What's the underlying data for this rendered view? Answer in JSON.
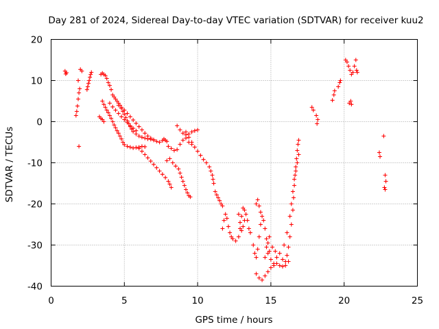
{
  "chart_data": {
    "type": "scatter",
    "title": "Day 281 of 2024, Sidereal Day-to-day VTEC variation (SDTVAR) for receiver kuu2",
    "xlabel": "GPS time / hours",
    "ylabel": "SDTVAR / TECUs",
    "xlim": [
      0,
      25
    ],
    "ylim": [
      -40,
      20
    ],
    "xticks": [
      "0",
      "5",
      "10",
      "15",
      "20",
      "25"
    ],
    "yticks": [
      "20",
      "10",
      "0",
      "-10",
      "-20",
      "-30",
      "-40"
    ],
    "grid": true,
    "marker": "+",
    "series": [
      {
        "name": "SDTVAR",
        "color": "#ff0000",
        "points": [
          [
            0.95,
            12.3
          ],
          [
            1.0,
            11.6
          ],
          [
            1.05,
            11.9
          ],
          [
            1.7,
            1.5
          ],
          [
            1.75,
            2.5
          ],
          [
            1.8,
            3.8
          ],
          [
            1.85,
            5.5
          ],
          [
            1.9,
            7.0
          ],
          [
            1.95,
            8.0
          ],
          [
            1.85,
            10.0
          ],
          [
            1.9,
            -6.0
          ],
          [
            2.0,
            12.7
          ],
          [
            2.1,
            12.3
          ],
          [
            2.45,
            7.8
          ],
          [
            2.5,
            8.5
          ],
          [
            2.55,
            9.3
          ],
          [
            2.6,
            10.0
          ],
          [
            2.65,
            10.8
          ],
          [
            2.7,
            11.5
          ],
          [
            2.75,
            12.0
          ],
          [
            3.3,
            1.2
          ],
          [
            3.4,
            0.8
          ],
          [
            3.5,
            0.5
          ],
          [
            3.6,
            0.0
          ],
          [
            3.4,
            11.5
          ],
          [
            3.5,
            11.8
          ],
          [
            3.6,
            11.5
          ],
          [
            3.7,
            11.2
          ],
          [
            3.8,
            10.5
          ],
          [
            3.9,
            9.5
          ],
          [
            4.0,
            8.8
          ],
          [
            4.1,
            7.8
          ],
          [
            3.5,
            5.0
          ],
          [
            3.6,
            4.2
          ],
          [
            3.7,
            3.5
          ],
          [
            3.8,
            2.8
          ],
          [
            3.9,
            2.2
          ],
          [
            4.0,
            1.5
          ],
          [
            4.1,
            0.8
          ],
          [
            4.2,
            0.0
          ],
          [
            4.3,
            -0.8
          ],
          [
            4.4,
            -1.5
          ],
          [
            4.5,
            -2.2
          ],
          [
            4.6,
            -2.8
          ],
          [
            4.7,
            -3.5
          ],
          [
            4.8,
            -4.2
          ],
          [
            4.9,
            -5.0
          ],
          [
            5.0,
            -5.6
          ],
          [
            5.2,
            -6.0
          ],
          [
            5.4,
            -6.2
          ],
          [
            5.6,
            -6.4
          ],
          [
            5.8,
            -6.3
          ],
          [
            6.0,
            -6.2
          ],
          [
            6.2,
            -6.0
          ],
          [
            6.4,
            -6.1
          ],
          [
            4.2,
            6.5
          ],
          [
            4.3,
            6.0
          ],
          [
            4.4,
            5.5
          ],
          [
            4.5,
            5.0
          ],
          [
            4.6,
            4.5
          ],
          [
            4.7,
            4.0
          ],
          [
            4.8,
            3.2
          ],
          [
            4.9,
            2.5
          ],
          [
            5.0,
            1.8
          ],
          [
            5.1,
            1.0
          ],
          [
            5.2,
            0.2
          ],
          [
            5.3,
            -0.5
          ],
          [
            5.4,
            -1.2
          ],
          [
            5.5,
            -1.8
          ],
          [
            5.6,
            -2.4
          ],
          [
            5.8,
            -3.0
          ],
          [
            6.0,
            -3.5
          ],
          [
            6.2,
            -3.8
          ],
          [
            6.4,
            -4.0
          ],
          [
            6.6,
            -4.2
          ],
          [
            6.8,
            -4.3
          ],
          [
            7.0,
            -4.4
          ],
          [
            4.6,
            4.0
          ],
          [
            4.8,
            3.5
          ],
          [
            5.0,
            2.8
          ],
          [
            5.2,
            2.0
          ],
          [
            5.4,
            1.2
          ],
          [
            5.6,
            0.4
          ],
          [
            5.8,
            -0.4
          ],
          [
            6.0,
            -1.2
          ],
          [
            6.2,
            -2.0
          ],
          [
            6.4,
            -2.8
          ],
          [
            6.6,
            -3.5
          ],
          [
            6.8,
            -4.0
          ],
          [
            7.0,
            -4.5
          ],
          [
            7.2,
            -4.8
          ],
          [
            7.4,
            -5.0
          ],
          [
            7.6,
            -4.6
          ],
          [
            7.7,
            -4.2
          ],
          [
            7.8,
            -4.5
          ],
          [
            7.9,
            -4.8
          ],
          [
            4.0,
            4.5
          ],
          [
            4.2,
            3.6
          ],
          [
            4.4,
            2.8
          ],
          [
            4.6,
            2.0
          ],
          [
            4.8,
            1.2
          ],
          [
            5.0,
            0.5
          ],
          [
            5.2,
            -0.2
          ],
          [
            5.4,
            -1.0
          ],
          [
            5.6,
            -1.6
          ],
          [
            5.8,
            -2.2
          ],
          [
            6.0,
            -6.5
          ],
          [
            6.2,
            -7.2
          ],
          [
            6.4,
            -8.0
          ],
          [
            6.6,
            -8.8
          ],
          [
            6.8,
            -9.6
          ],
          [
            7.0,
            -10.4
          ],
          [
            7.2,
            -11.2
          ],
          [
            7.4,
            -12.0
          ],
          [
            7.6,
            -12.8
          ],
          [
            7.8,
            -13.6
          ],
          [
            8.0,
            -14.5
          ],
          [
            8.1,
            -15.2
          ],
          [
            8.2,
            -16.0
          ],
          [
            7.9,
            -9.5
          ],
          [
            8.1,
            -9.0
          ],
          [
            8.3,
            -10.0
          ],
          [
            8.5,
            -10.8
          ],
          [
            8.7,
            -11.5
          ],
          [
            8.8,
            -12.5
          ],
          [
            8.9,
            -13.5
          ],
          [
            9.0,
            -14.5
          ],
          [
            9.1,
            -15.5
          ],
          [
            9.2,
            -16.5
          ],
          [
            9.3,
            -17.3
          ],
          [
            9.4,
            -18.0
          ],
          [
            9.5,
            -18.3
          ],
          [
            8.0,
            -6.0
          ],
          [
            8.2,
            -6.5
          ],
          [
            8.4,
            -7.0
          ],
          [
            8.6,
            -6.8
          ],
          [
            8.8,
            -5.5
          ],
          [
            9.0,
            -4.5
          ],
          [
            9.2,
            -4.0
          ],
          [
            9.4,
            -5.0
          ],
          [
            9.6,
            -5.5
          ],
          [
            8.6,
            -1.0
          ],
          [
            8.8,
            -2.0
          ],
          [
            9.0,
            -2.8
          ],
          [
            9.2,
            -3.2
          ],
          [
            9.4,
            -3.0
          ],
          [
            9.6,
            -2.5
          ],
          [
            9.8,
            -2.2
          ],
          [
            10.0,
            -2.0
          ],
          [
            9.2,
            -2.5
          ],
          [
            9.4,
            -3.8
          ],
          [
            9.6,
            -5.0
          ],
          [
            9.8,
            -6.2
          ],
          [
            10.0,
            -7.2
          ],
          [
            10.2,
            -8.2
          ],
          [
            10.4,
            -9.2
          ],
          [
            10.6,
            -10.0
          ],
          [
            10.8,
            -11.0
          ],
          [
            10.9,
            -12.0
          ],
          [
            11.0,
            -13.0
          ],
          [
            11.05,
            -14.0
          ],
          [
            11.1,
            -15.0
          ],
          [
            11.2,
            -17.0
          ],
          [
            11.3,
            -17.8
          ],
          [
            11.4,
            -18.5
          ],
          [
            11.5,
            -19.2
          ],
          [
            11.6,
            -20.0
          ],
          [
            11.7,
            -20.5
          ],
          [
            11.7,
            -26.0
          ],
          [
            11.8,
            -24.0
          ],
          [
            11.9,
            -22.5
          ],
          [
            12.0,
            -23.5
          ],
          [
            12.1,
            -25.5
          ],
          [
            12.2,
            -27.0
          ],
          [
            12.3,
            -28.0
          ],
          [
            12.4,
            -28.5
          ],
          [
            12.6,
            -29.0
          ],
          [
            12.8,
            -28.0
          ],
          [
            12.9,
            -26.0
          ],
          [
            13.0,
            -23.0
          ],
          [
            13.1,
            -21.0
          ],
          [
            13.2,
            -21.5
          ],
          [
            13.3,
            -22.5
          ],
          [
            13.4,
            -24.0
          ],
          [
            13.5,
            -26.0
          ],
          [
            13.6,
            -27.0
          ],
          [
            12.8,
            -22.5
          ],
          [
            12.9,
            -24.5
          ],
          [
            13.0,
            -26.5
          ],
          [
            13.1,
            -25.5
          ],
          [
            13.2,
            -24.0
          ],
          [
            13.8,
            -30.0
          ],
          [
            13.9,
            -32.0
          ],
          [
            14.0,
            -33.0
          ],
          [
            14.1,
            -31.0
          ],
          [
            14.2,
            -28.0
          ],
          [
            14.3,
            -25.0
          ],
          [
            14.4,
            -23.0
          ],
          [
            14.5,
            -24.0
          ],
          [
            14.6,
            -26.0
          ],
          [
            14.7,
            -28.5
          ],
          [
            14.8,
            -29.5
          ],
          [
            14.9,
            -28.0
          ],
          [
            14.0,
            -20.0
          ],
          [
            14.1,
            -19.0
          ],
          [
            14.2,
            -20.5
          ],
          [
            14.3,
            -22.0
          ],
          [
            14.0,
            -37.0
          ],
          [
            14.2,
            -38.0
          ],
          [
            14.4,
            -38.5
          ],
          [
            14.6,
            -37.5
          ],
          [
            14.8,
            -36.5
          ],
          [
            15.0,
            -35.5
          ],
          [
            15.2,
            -35.0
          ],
          [
            15.4,
            -34.5
          ],
          [
            15.6,
            -35.0
          ],
          [
            15.8,
            -35.2
          ],
          [
            16.0,
            -34.0
          ],
          [
            16.1,
            -32.5
          ],
          [
            16.2,
            -30.5
          ],
          [
            16.3,
            -28.0
          ],
          [
            16.4,
            -25.0
          ],
          [
            16.5,
            -21.5
          ],
          [
            16.55,
            -18.5
          ],
          [
            16.6,
            -15.5
          ],
          [
            16.65,
            -13.0
          ],
          [
            16.7,
            -11.0
          ],
          [
            16.75,
            -9.0
          ],
          [
            16.8,
            -7.0
          ],
          [
            16.85,
            -5.5
          ],
          [
            16.9,
            -4.5
          ],
          [
            14.6,
            -33.0
          ],
          [
            14.8,
            -32.0
          ],
          [
            15.0,
            -33.5
          ],
          [
            15.2,
            -34.5
          ],
          [
            15.4,
            -33.0
          ],
          [
            15.6,
            -32.0
          ],
          [
            15.8,
            -33.5
          ],
          [
            16.0,
            -35.0
          ],
          [
            16.2,
            -34.0
          ],
          [
            14.7,
            -30.5
          ],
          [
            14.9,
            -31.5
          ],
          [
            15.1,
            -30.5
          ],
          [
            15.3,
            -31.5
          ],
          [
            15.9,
            -30.0
          ],
          [
            16.1,
            -27.0
          ],
          [
            16.3,
            -23.0
          ],
          [
            16.4,
            -20.0
          ],
          [
            16.5,
            -17.0
          ],
          [
            16.6,
            -14.0
          ],
          [
            16.7,
            -12.0
          ],
          [
            16.8,
            -10.0
          ],
          [
            16.9,
            -8.0
          ],
          [
            17.8,
            3.5
          ],
          [
            17.9,
            2.8
          ],
          [
            18.1,
            1.5
          ],
          [
            18.2,
            0.5
          ],
          [
            18.15,
            -0.5
          ],
          [
            19.2,
            5.2
          ],
          [
            19.3,
            6.5
          ],
          [
            19.35,
            7.5
          ],
          [
            19.6,
            8.5
          ],
          [
            19.7,
            9.5
          ],
          [
            19.75,
            10.0
          ],
          [
            20.1,
            15.0
          ],
          [
            20.2,
            14.5
          ],
          [
            20.3,
            13.5
          ],
          [
            20.4,
            12.5
          ],
          [
            20.5,
            11.5
          ],
          [
            20.6,
            12.0
          ],
          [
            20.7,
            13.5
          ],
          [
            20.8,
            15.0
          ],
          [
            20.85,
            12.5
          ],
          [
            20.9,
            12.0
          ],
          [
            20.35,
            4.5
          ],
          [
            20.45,
            5.0
          ],
          [
            20.5,
            4.2
          ],
          [
            22.4,
            -7.5
          ],
          [
            22.45,
            -8.5
          ],
          [
            22.7,
            -3.5
          ],
          [
            22.8,
            -13.0
          ],
          [
            22.85,
            -14.5
          ],
          [
            22.75,
            -16.0
          ],
          [
            22.8,
            -16.5
          ]
        ]
      }
    ]
  }
}
